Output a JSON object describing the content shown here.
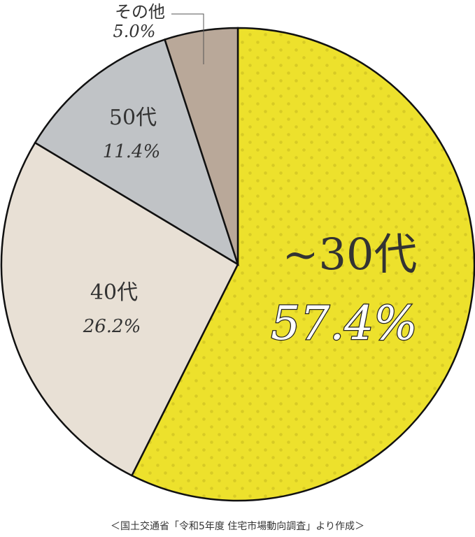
{
  "chart_data": {
    "type": "pie",
    "start": "top",
    "direction": "clockwise",
    "slices": [
      {
        "label": "~30代",
        "value": 57.4,
        "value_label": "57.4%",
        "color": "#ede12c",
        "pattern": "dots",
        "pattern_color": "#d8cb25"
      },
      {
        "label": "40代",
        "value": 26.2,
        "value_label": "26.2%",
        "color": "#e8e0d5"
      },
      {
        "label": "50代",
        "value": 11.4,
        "value_label": "11.4%",
        "color": "#c0c3c6"
      },
      {
        "label": "その他",
        "value": 5.0,
        "value_label": "5.0%",
        "color": "#b9a899"
      }
    ],
    "source": "＜国土交通省「令和5年度 住宅市場動向調査」より作成＞"
  }
}
